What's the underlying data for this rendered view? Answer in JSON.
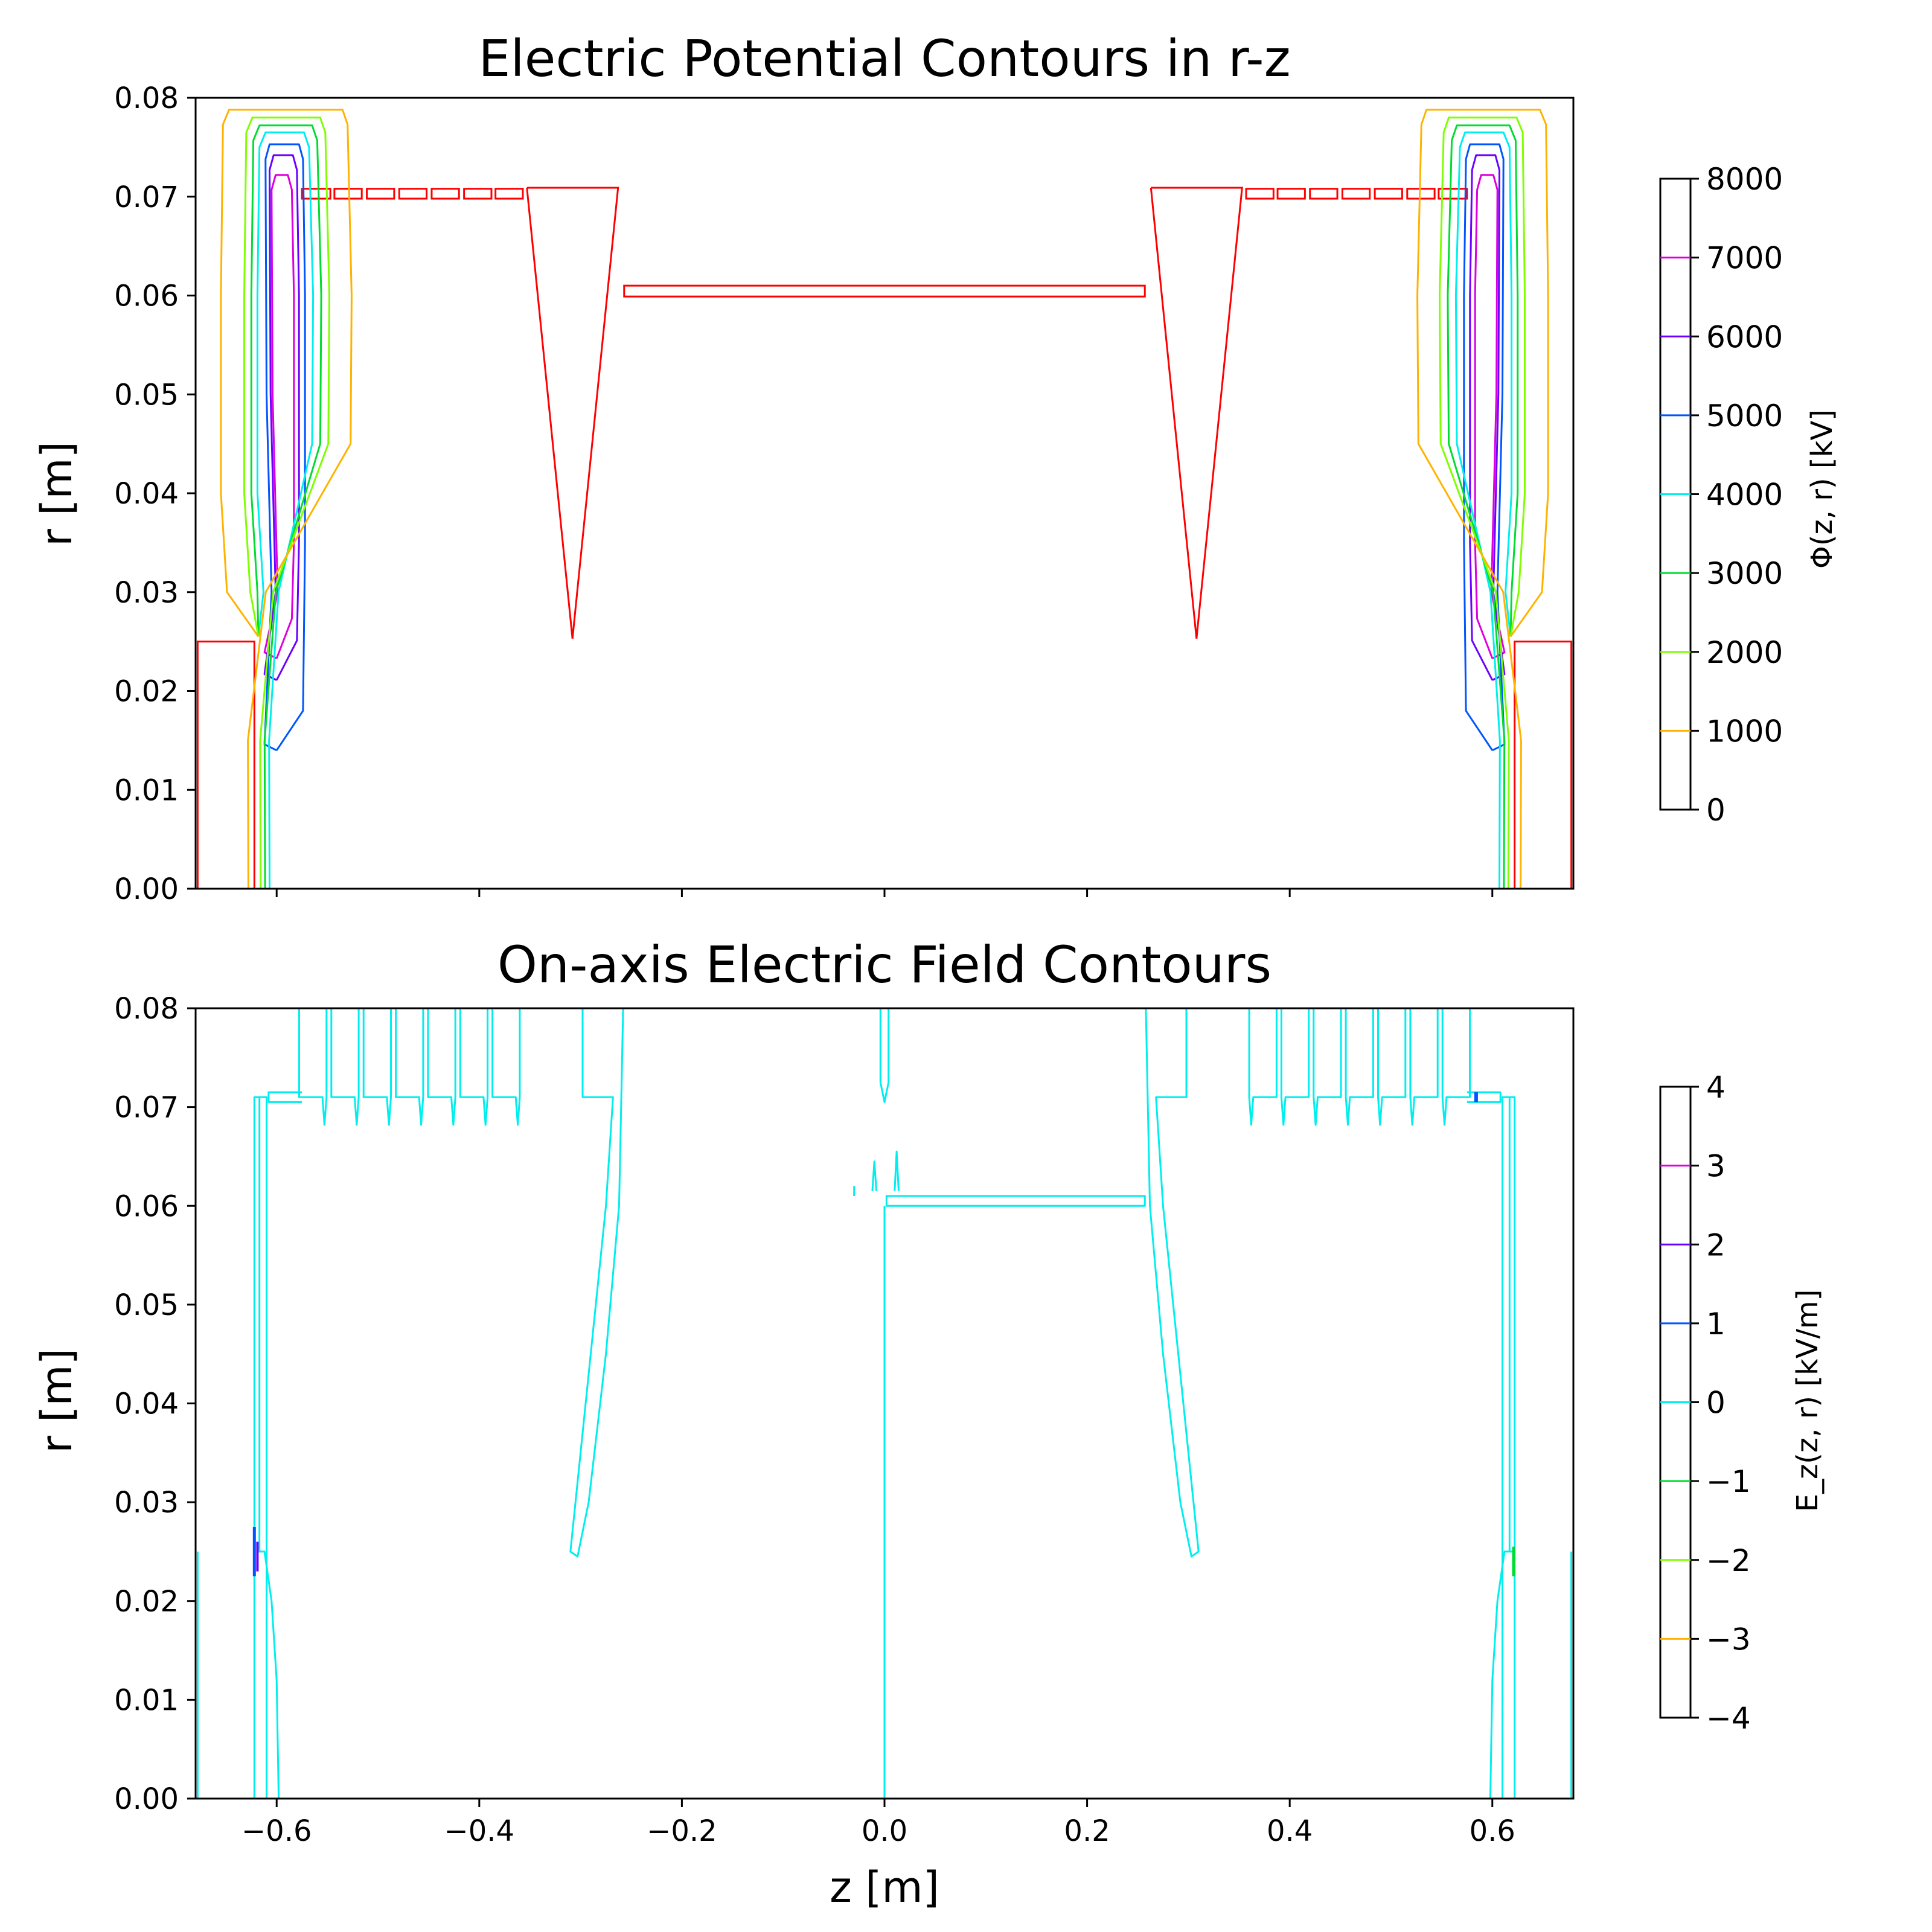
{
  "chart_data": [
    {
      "type": "contour",
      "title": "Electric Potential Contours in r-z",
      "xlabel": "",
      "ylabel": "r [m]",
      "xlim": [
        -0.68,
        0.68
      ],
      "ylim": [
        0.0,
        0.08
      ],
      "x_ticks": [
        -0.6,
        -0.4,
        -0.2,
        0.0,
        0.2,
        0.4,
        0.6
      ],
      "x_tick_labels_shown": false,
      "y_ticks": [
        0.0,
        0.01,
        0.02,
        0.03,
        0.04,
        0.05,
        0.06,
        0.07,
        0.08
      ],
      "y_tick_labels": [
        "0.00",
        "0.01",
        "0.02",
        "0.03",
        "0.04",
        "0.05",
        "0.06",
        "0.07",
        "0.08"
      ],
      "colorbar": {
        "label": "Φ(z, r) [kV]",
        "range": [
          0,
          8000
        ],
        "ticks": [
          "0",
          "1000",
          "2000",
          "3000",
          "4000",
          "5000",
          "6000",
          "7000",
          "8000"
        ],
        "levels": [
          {
            "value": 1000,
            "color": "#ffb300"
          },
          {
            "value": 2000,
            "color": "#80ff00"
          },
          {
            "value": 3000,
            "color": "#00dd30"
          },
          {
            "value": 4000,
            "color": "#00eeee"
          },
          {
            "value": 5000,
            "color": "#0055ff"
          },
          {
            "value": 6000,
            "color": "#6a00ff"
          },
          {
            "value": 7000,
            "color": "#dd00dd"
          }
        ]
      },
      "conductor_color": "#ff0000",
      "conductors": {
        "end_blocks_z": [
          [
            -0.678,
            -0.622
          ],
          [
            0.622,
            0.678
          ]
        ],
        "end_block_r_top": 0.025,
        "small_rings_left_z": [
          [
            -0.575,
            -0.547
          ],
          [
            -0.543,
            -0.516
          ],
          [
            -0.511,
            -0.484
          ],
          [
            -0.479,
            -0.452
          ],
          [
            -0.447,
            -0.42
          ],
          [
            -0.415,
            -0.388
          ],
          [
            -0.384,
            -0.357
          ]
        ],
        "small_rings_right_z": [
          [
            0.357,
            0.384
          ],
          [
            0.388,
            0.415
          ],
          [
            0.42,
            0.447
          ],
          [
            0.452,
            0.479
          ],
          [
            0.484,
            0.511
          ],
          [
            0.516,
            0.543
          ],
          [
            0.547,
            0.575
          ]
        ],
        "small_rings_r": [
          0.0698,
          0.0708
        ],
        "cones": [
          {
            "z_top": [
              -0.353,
              -0.263
            ],
            "tip": [
              -0.308,
              0.0253
            ],
            "r_top": 0.0709
          },
          {
            "z_top": [
              0.263,
              0.353
            ],
            "tip": [
              0.308,
              0.0253
            ],
            "r_top": 0.0709
          }
        ],
        "central_tube": {
          "z": [
            -0.257,
            0.257
          ],
          "r": [
            0.0599,
            0.061
          ]
        }
      },
      "potential_contours": [
        {
          "value": 7000,
          "z_inner": 0.607,
          "z_outer": 0.583,
          "r_top": 0.0722,
          "r_bottom": 0.0233
        },
        {
          "value": 6000,
          "z_inner": 0.609,
          "z_outer": 0.578,
          "r_top": 0.0742,
          "r_bottom": 0.0211
        },
        {
          "value": 5000,
          "z_inner": 0.613,
          "z_outer": 0.572,
          "r_top": 0.0753,
          "r_bottom": 0.014
        },
        {
          "value": 4000,
          "z_inner": 0.619,
          "z_outer": 0.565,
          "r_top": 0.0765
        },
        {
          "value": 3000,
          "z_inner": 0.625,
          "z_outer": 0.557,
          "r_top": 0.0772
        },
        {
          "value": 2000,
          "z_inner": 0.632,
          "z_outer": 0.549,
          "r_top": 0.078
        },
        {
          "value": 1000,
          "z_inner": 0.655,
          "z_outer": 0.527,
          "r_top": 0.0788
        }
      ]
    },
    {
      "type": "contour",
      "title": "On-axis Electric Field Contours",
      "xlabel": "z [m]",
      "ylabel": "r [m]",
      "xlim": [
        -0.68,
        0.68
      ],
      "ylim": [
        0.0,
        0.08
      ],
      "x_ticks": [
        -0.6,
        -0.4,
        -0.2,
        0.0,
        0.2,
        0.4,
        0.6
      ],
      "x_tick_labels": [
        "−0.6",
        "−0.4",
        "−0.2",
        "0.0",
        "0.2",
        "0.4",
        "0.6"
      ],
      "y_ticks": [
        0.0,
        0.01,
        0.02,
        0.03,
        0.04,
        0.05,
        0.06,
        0.07,
        0.08
      ],
      "y_tick_labels": [
        "0.00",
        "0.01",
        "0.02",
        "0.03",
        "0.04",
        "0.05",
        "0.06",
        "0.07",
        "0.08"
      ],
      "colorbar": {
        "label": "E_z(z, r) [kV/m]",
        "range": [
          -4,
          4
        ],
        "ticks": [
          "−4",
          "−3",
          "−2",
          "−1",
          "0",
          "1",
          "2",
          "3",
          "4"
        ],
        "levels": [
          {
            "value": -3,
            "color": "#ffb300"
          },
          {
            "value": -2,
            "color": "#80ff00"
          },
          {
            "value": -1,
            "color": "#00dd30"
          },
          {
            "value": 0,
            "color": "#00eeee"
          },
          {
            "value": 1,
            "color": "#0055ff"
          },
          {
            "value": 2,
            "color": "#6a00ff"
          },
          {
            "value": 3,
            "color": "#dd00dd"
          }
        ]
      },
      "zero_contour_color": "#00eeee"
    }
  ]
}
